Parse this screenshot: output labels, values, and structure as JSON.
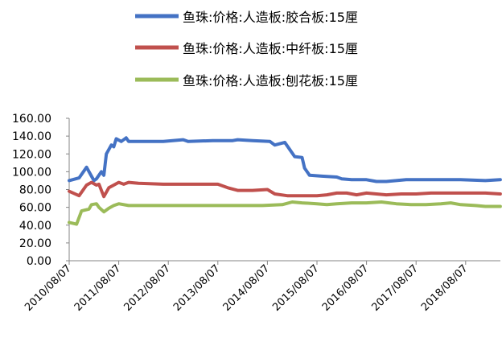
{
  "chart_data": {
    "type": "line",
    "title": "",
    "xlabel": "",
    "ylabel": "",
    "ylim": [
      0,
      160
    ],
    "yticks": [
      "0.00",
      "20.00",
      "40.00",
      "60.00",
      "80.00",
      "100.00",
      "120.00",
      "140.00",
      "160.00"
    ],
    "xticks": [
      "2010/08/07",
      "2011/08/07",
      "2012/08/07",
      "2013/08/07",
      "2014/08/07",
      "2015/08/07",
      "2016/08/07",
      "2017/08/07",
      "2018/08/07"
    ],
    "grid": false,
    "legend_position": "top-center",
    "series": [
      {
        "name": "鱼珠:价格:人造板:胶合板:15厘",
        "color": "#4472C4",
        "points": [
          [
            2010.6,
            90
          ],
          [
            2010.8,
            93
          ],
          [
            2010.95,
            105
          ],
          [
            2011.05,
            95
          ],
          [
            2011.1,
            90
          ],
          [
            2011.15,
            92
          ],
          [
            2011.25,
            100
          ],
          [
            2011.3,
            96
          ],
          [
            2011.35,
            120
          ],
          [
            2011.45,
            130
          ],
          [
            2011.5,
            128
          ],
          [
            2011.55,
            137
          ],
          [
            2011.65,
            134
          ],
          [
            2011.75,
            138
          ],
          [
            2011.8,
            134
          ],
          [
            2012.0,
            134
          ],
          [
            2012.5,
            134
          ],
          [
            2012.9,
            136
          ],
          [
            2013.0,
            134
          ],
          [
            2013.5,
            135
          ],
          [
            2013.9,
            135
          ],
          [
            2014.0,
            136
          ],
          [
            2014.3,
            135
          ],
          [
            2014.65,
            134
          ],
          [
            2014.75,
            130
          ],
          [
            2014.95,
            133
          ],
          [
            2015.05,
            125
          ],
          [
            2015.15,
            117
          ],
          [
            2015.3,
            116
          ],
          [
            2015.35,
            104
          ],
          [
            2015.45,
            96
          ],
          [
            2015.7,
            95
          ],
          [
            2016.0,
            94
          ],
          [
            2016.1,
            92
          ],
          [
            2016.3,
            91
          ],
          [
            2016.6,
            91
          ],
          [
            2016.8,
            89
          ],
          [
            2017.0,
            89
          ],
          [
            2017.2,
            90
          ],
          [
            2017.4,
            91
          ],
          [
            2017.7,
            91
          ],
          [
            2018.0,
            91
          ],
          [
            2018.5,
            91
          ],
          [
            2019.0,
            90
          ],
          [
            2019.3,
            91
          ]
        ]
      },
      {
        "name": "鱼珠:价格:人造板:中纤板:15厘",
        "color": "#C0504D",
        "points": [
          [
            2010.6,
            78
          ],
          [
            2010.8,
            73
          ],
          [
            2010.95,
            85
          ],
          [
            2011.05,
            88
          ],
          [
            2011.15,
            85
          ],
          [
            2011.2,
            86
          ],
          [
            2011.3,
            72
          ],
          [
            2011.4,
            82
          ],
          [
            2011.5,
            85
          ],
          [
            2011.6,
            88
          ],
          [
            2011.7,
            86
          ],
          [
            2011.8,
            88
          ],
          [
            2012.0,
            87
          ],
          [
            2012.5,
            86
          ],
          [
            2012.9,
            86
          ],
          [
            2013.2,
            86
          ],
          [
            2013.6,
            86
          ],
          [
            2013.8,
            82
          ],
          [
            2014.0,
            79
          ],
          [
            2014.3,
            79
          ],
          [
            2014.6,
            80
          ],
          [
            2014.75,
            75
          ],
          [
            2015.0,
            73
          ],
          [
            2015.3,
            73
          ],
          [
            2015.6,
            73
          ],
          [
            2015.8,
            74
          ],
          [
            2016.0,
            76
          ],
          [
            2016.2,
            76
          ],
          [
            2016.4,
            74
          ],
          [
            2016.6,
            76
          ],
          [
            2016.8,
            75
          ],
          [
            2017.0,
            74
          ],
          [
            2017.3,
            75
          ],
          [
            2017.6,
            75
          ],
          [
            2017.9,
            76
          ],
          [
            2018.2,
            76
          ],
          [
            2018.6,
            76
          ],
          [
            2019.0,
            76
          ],
          [
            2019.3,
            75
          ]
        ]
      },
      {
        "name": "鱼珠:价格:人造板:刨花板:15厘",
        "color": "#9BBB59",
        "points": [
          [
            2010.6,
            43
          ],
          [
            2010.75,
            41
          ],
          [
            2010.85,
            56
          ],
          [
            2011.0,
            58
          ],
          [
            2011.05,
            63
          ],
          [
            2011.15,
            64
          ],
          [
            2011.2,
            60
          ],
          [
            2011.3,
            55
          ],
          [
            2011.4,
            59
          ],
          [
            2011.5,
            62
          ],
          [
            2011.6,
            64
          ],
          [
            2011.8,
            62
          ],
          [
            2012.0,
            62
          ],
          [
            2012.5,
            62
          ],
          [
            2013.0,
            62
          ],
          [
            2013.5,
            62
          ],
          [
            2014.0,
            62
          ],
          [
            2014.5,
            62
          ],
          [
            2014.9,
            63
          ],
          [
            2015.1,
            66
          ],
          [
            2015.3,
            65
          ],
          [
            2015.6,
            64
          ],
          [
            2015.8,
            63
          ],
          [
            2016.0,
            64
          ],
          [
            2016.3,
            65
          ],
          [
            2016.6,
            65
          ],
          [
            2016.9,
            66
          ],
          [
            2017.2,
            64
          ],
          [
            2017.5,
            63
          ],
          [
            2017.8,
            63
          ],
          [
            2018.1,
            64
          ],
          [
            2018.3,
            65
          ],
          [
            2018.5,
            63
          ],
          [
            2018.8,
            62
          ],
          [
            2019.0,
            61
          ],
          [
            2019.3,
            61
          ]
        ]
      }
    ]
  }
}
